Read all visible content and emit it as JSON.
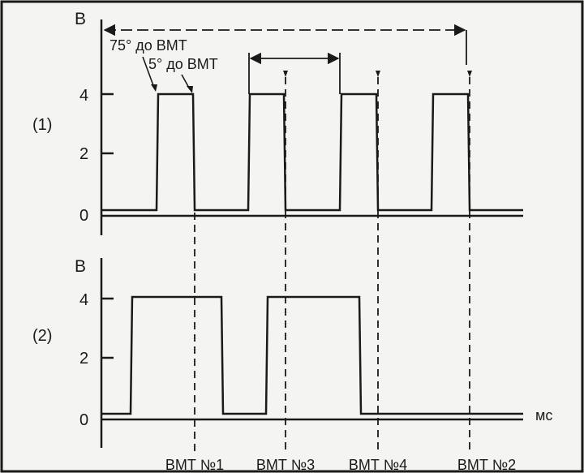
{
  "panel1": {
    "unit": "В",
    "channel": "(1)",
    "ticks": [
      "4",
      "2",
      "0"
    ]
  },
  "panel2": {
    "unit": "В",
    "channel": "(2)",
    "ticks": [
      "4",
      "2",
      "0"
    ],
    "time_unit": "мс"
  },
  "annotations": {
    "advance_75": "75° до ВМТ",
    "advance_5": "5° до ВМТ"
  },
  "tdc_labels": [
    "ВМТ №1",
    "ВМТ №3",
    "ВМТ №4",
    "ВМТ №2"
  ]
}
